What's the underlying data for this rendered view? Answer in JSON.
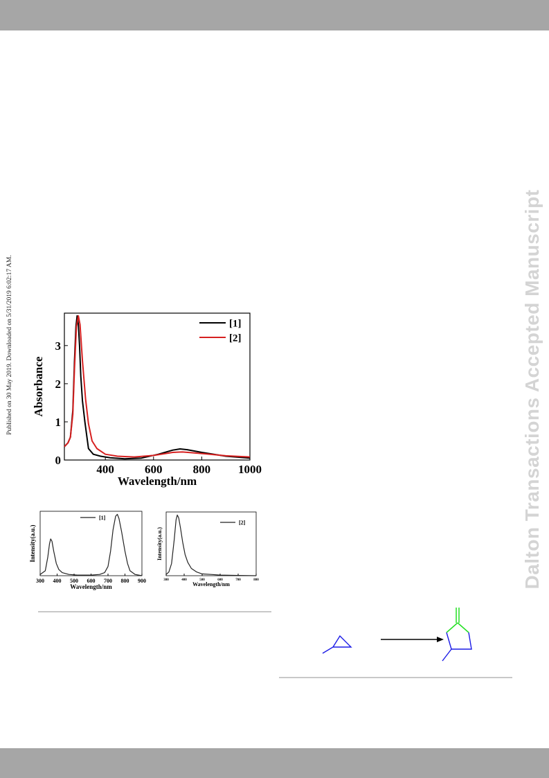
{
  "page": {
    "side_note": "Published on 30 May 2019. Downloaded on 5/31/2019 6:02:17 AM.",
    "watermark": "Dalton Transactions Accepted Manuscript"
  },
  "chart_data": [
    {
      "type": "line",
      "xlabel": "Wavelength/nm",
      "ylabel": "Absorbance",
      "xlim": [
        230,
        1000
      ],
      "ylim": [
        0,
        3.85
      ],
      "xticks": [
        400,
        600,
        800,
        1000
      ],
      "yticks": [
        0,
        1,
        2,
        3
      ],
      "legend_position": "top-right",
      "series": [
        {
          "name": "[1]",
          "color": "#000000",
          "x": [
            230,
            245,
            255,
            265,
            272,
            278,
            283,
            288,
            293,
            298,
            305,
            315,
            330,
            350,
            380,
            420,
            480,
            550,
            620,
            680,
            710,
            740,
            800,
            900,
            1000
          ],
          "y": [
            0.35,
            0.45,
            0.6,
            1.3,
            2.6,
            3.5,
            3.78,
            3.55,
            3.0,
            2.2,
            1.55,
            1.0,
            0.3,
            0.15,
            0.1,
            0.06,
            0.03,
            0.05,
            0.15,
            0.26,
            0.29,
            0.27,
            0.2,
            0.1,
            0.05
          ]
        },
        {
          "name": "[2]",
          "color": "#d62020",
          "x": [
            230,
            245,
            255,
            265,
            272,
            280,
            288,
            295,
            305,
            318,
            330,
            345,
            365,
            400,
            450,
            520,
            600,
            680,
            720,
            760,
            820,
            900,
            1000
          ],
          "y": [
            0.35,
            0.45,
            0.6,
            1.2,
            2.4,
            3.5,
            3.78,
            3.55,
            2.6,
            1.6,
            0.95,
            0.5,
            0.3,
            0.15,
            0.1,
            0.08,
            0.12,
            0.2,
            0.21,
            0.19,
            0.16,
            0.11,
            0.08
          ]
        }
      ]
    },
    {
      "type": "line",
      "xlabel": "Wavelength/nm",
      "ylabel": "Intensity(a.u.)",
      "xlim": [
        300,
        900
      ],
      "ylim": [
        0,
        1.05
      ],
      "xticks": [
        300,
        400,
        500,
        600,
        700,
        800,
        900
      ],
      "legend_position": "top",
      "series": [
        {
          "name": "[1]",
          "color": "#222222",
          "x": [
            300,
            330,
            345,
            355,
            362,
            370,
            380,
            395,
            410,
            430,
            470,
            520,
            600,
            650,
            680,
            700,
            715,
            730,
            745,
            755,
            765,
            780,
            800,
            815,
            830,
            860,
            900
          ],
          "y": [
            0.02,
            0.08,
            0.3,
            0.52,
            0.6,
            0.56,
            0.4,
            0.2,
            0.1,
            0.05,
            0.02,
            0.01,
            0.01,
            0.02,
            0.05,
            0.15,
            0.4,
            0.75,
            0.97,
            1.0,
            0.93,
            0.72,
            0.4,
            0.2,
            0.08,
            0.02,
            0.0
          ]
        }
      ]
    },
    {
      "type": "line",
      "xlabel": "Wavelength/nm",
      "ylabel": "Intensity(a.u.)",
      "xlim": [
        300,
        800
      ],
      "ylim": [
        0,
        1.05
      ],
      "xticks": [
        300,
        400,
        500,
        600,
        700,
        800
      ],
      "legend_position": "top-right",
      "series": [
        {
          "name": "[2]",
          "color": "#222222",
          "x": [
            300,
            315,
            330,
            345,
            355,
            362,
            370,
            380,
            392,
            405,
            420,
            440,
            470,
            500,
            550,
            600,
            700,
            800
          ],
          "y": [
            0.02,
            0.06,
            0.2,
            0.6,
            0.92,
            1.0,
            0.95,
            0.78,
            0.55,
            0.35,
            0.22,
            0.12,
            0.06,
            0.03,
            0.02,
            0.01,
            0.005,
            0.0
          ]
        }
      ]
    }
  ]
}
